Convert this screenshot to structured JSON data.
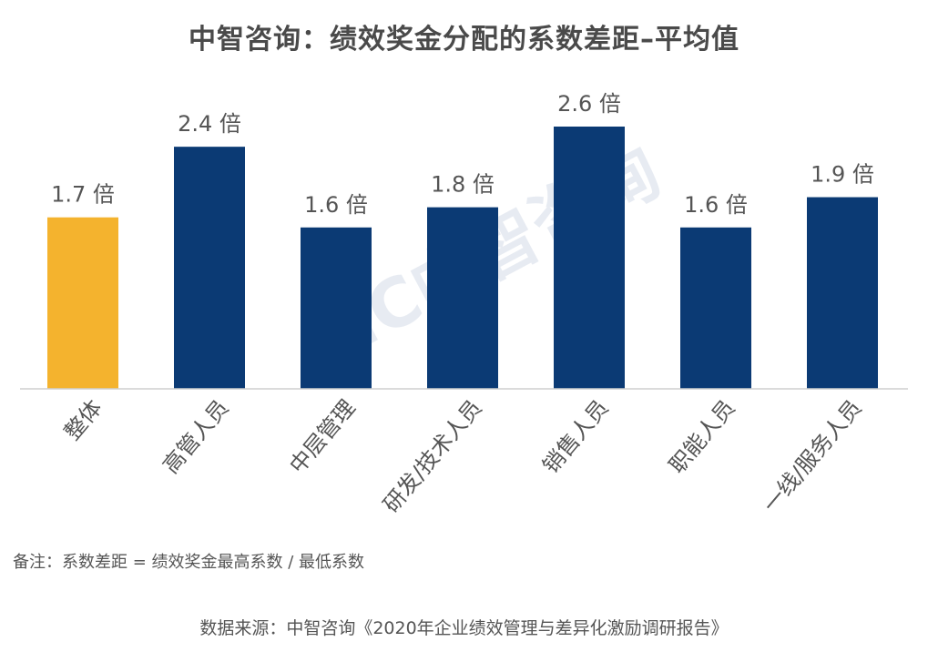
{
  "colors": {
    "highlight": "#F4B32E",
    "bar": "#0B3A74",
    "text": "#555555",
    "title": "#4a4a4a"
  },
  "chart_data": {
    "type": "bar",
    "title": "中智咨询：绩效奖金分配的系数差距–平均值",
    "categories": [
      "整体",
      "高管人员",
      "中层管理",
      "研发/技术人员",
      "销售人员",
      "职能人员",
      "一线/服务人员"
    ],
    "values": [
      1.7,
      2.4,
      1.6,
      1.8,
      2.6,
      1.6,
      1.9
    ],
    "data_labels": [
      "1.7 倍",
      "2.4 倍",
      "1.6 倍",
      "1.8 倍",
      "2.6 倍",
      "1.6 倍",
      "1.9 倍"
    ],
    "highlight_index": 0,
    "ylim": [
      0,
      2.6
    ],
    "grid": false,
    "watermark": "IC中智咨询"
  },
  "note": "备注：系数差距 = 绩效奖金最高系数 / 最低系数",
  "source": "数据来源：中智咨询《2020年企业绩效管理与差异化激励调研报告》"
}
